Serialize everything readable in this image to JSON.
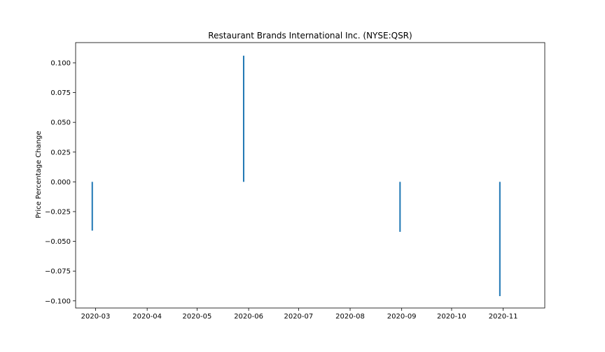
{
  "chart_data": {
    "type": "bar",
    "title": "Restaurant Brands International Inc. (NYSE:QSR)",
    "xlabel": "",
    "ylabel": "Price Percentage Change",
    "x_axis_type": "date",
    "xlim": [
      "2020-02-18",
      "2020-11-26"
    ],
    "ylim": [
      -0.106,
      0.117
    ],
    "x_ticks": [
      "2020-03",
      "2020-04",
      "2020-05",
      "2020-06",
      "2020-07",
      "2020-08",
      "2020-09",
      "2020-10",
      "2020-11"
    ],
    "y_ticks": [
      0.1,
      0.075,
      0.05,
      0.025,
      0.0,
      -0.025,
      -0.05,
      -0.075,
      -0.1
    ],
    "y_tick_labels": [
      "0.100",
      "0.075",
      "0.050",
      "0.025",
      "0.000",
      "−0.025",
      "−0.050",
      "−0.075",
      "−0.100"
    ],
    "grid": false,
    "legend": "none",
    "series": [
      {
        "color": "#1f77b4",
        "points": [
          {
            "x": "2020-02-28",
            "y": -0.041
          },
          {
            "x": "2020-05-29",
            "y": 0.106
          },
          {
            "x": "2020-08-31",
            "y": -0.042
          },
          {
            "x": "2020-10-30",
            "y": -0.096
          }
        ]
      }
    ]
  }
}
